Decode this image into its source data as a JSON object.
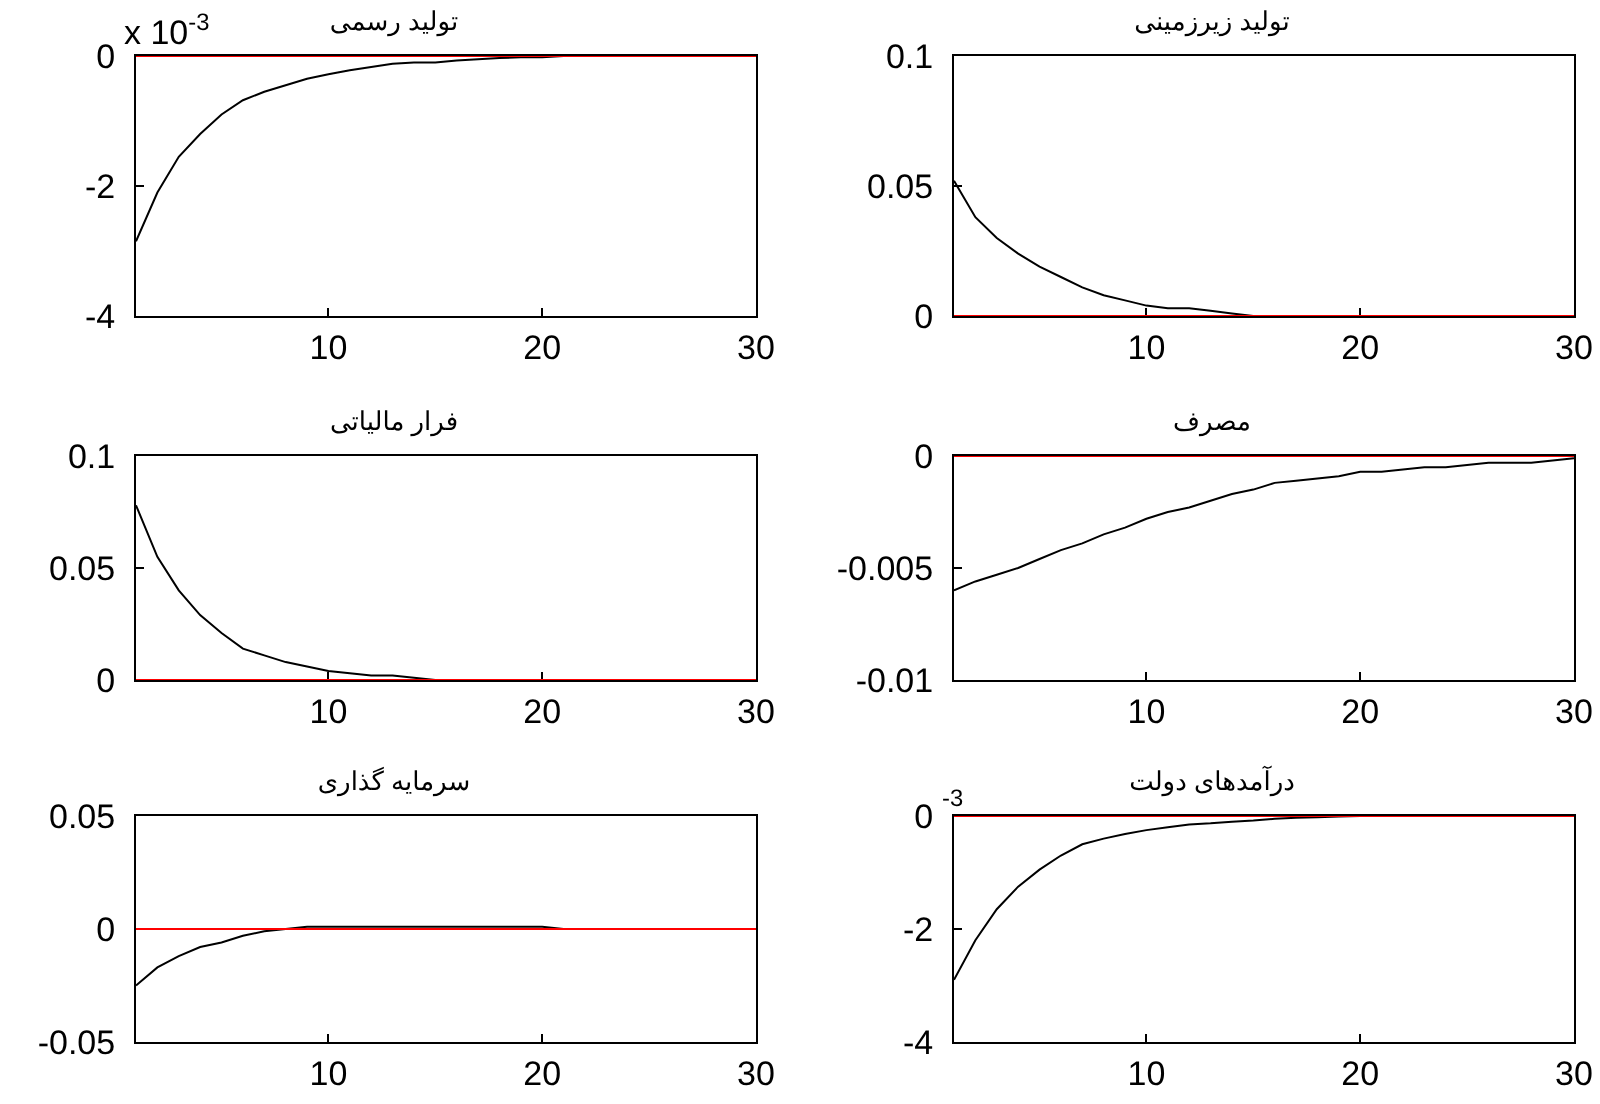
{
  "chart_data": [
    {
      "type": "line",
      "title": "تولید رسمی",
      "annotations": [
        "x 10$^{-3}$"
      ],
      "x": [
        1,
        2,
        3,
        4,
        5,
        6,
        7,
        8,
        9,
        10,
        11,
        12,
        13,
        14,
        15,
        16,
        17,
        18,
        19,
        20,
        21,
        22,
        23,
        24,
        25,
        26,
        27,
        28,
        29,
        30
      ],
      "xlim": [
        1,
        30
      ],
      "xticks": [
        10,
        20,
        30
      ],
      "ylim": [
        -4,
        0
      ],
      "yticks": [
        -4,
        -2,
        0
      ],
      "color": "#000000",
      "values": [
        -2.85,
        -2.1,
        -1.55,
        -1.2,
        -0.9,
        -0.68,
        -0.55,
        -0.45,
        -0.35,
        -0.28,
        -0.22,
        -0.17,
        -0.12,
        -0.1,
        -0.1,
        -0.07,
        -0.05,
        -0.03,
        -0.02,
        -0.02,
        0,
        0,
        0,
        0,
        0,
        0,
        0,
        0,
        0,
        0
      ],
      "ref_lines": [
        {
          "axis": "y",
          "value": 0,
          "color": "#ff0000"
        }
      ]
    },
    {
      "type": "line",
      "title": "تولید زیرزمینی",
      "x": [
        1,
        2,
        3,
        4,
        5,
        6,
        7,
        8,
        9,
        10,
        11,
        12,
        13,
        14,
        15,
        16,
        17,
        18,
        19,
        20,
        21,
        22,
        23,
        24,
        25,
        26,
        27,
        28,
        29,
        30
      ],
      "xlim": [
        1,
        30
      ],
      "xticks": [
        10,
        20,
        30
      ],
      "ylim": [
        0,
        0.1
      ],
      "yticks": [
        0,
        0.05,
        0.1
      ],
      "color": "#000000",
      "values": [
        0.052,
        0.038,
        0.03,
        0.024,
        0.019,
        0.015,
        0.011,
        0.008,
        0.006,
        0.004,
        0.003,
        0.003,
        0.002,
        0.001,
        0,
        0,
        0,
        0,
        0,
        0,
        0,
        0,
        0,
        0,
        0,
        0,
        0,
        0,
        0,
        0
      ],
      "ref_lines": [
        {
          "axis": "y",
          "value": 0,
          "color": "#ff0000"
        }
      ]
    },
    {
      "type": "line",
      "title": "فرار مالیاتی",
      "x": [
        1,
        2,
        3,
        4,
        5,
        6,
        7,
        8,
        9,
        10,
        11,
        12,
        13,
        14,
        15,
        16,
        17,
        18,
        19,
        20,
        21,
        22,
        23,
        24,
        25,
        26,
        27,
        28,
        29,
        30
      ],
      "xlim": [
        1,
        30
      ],
      "xticks": [
        10,
        20,
        30
      ],
      "ylim": [
        0,
        0.1
      ],
      "yticks": [
        0,
        0.05,
        0.1
      ],
      "color": "#000000",
      "values": [
        0.078,
        0.055,
        0.04,
        0.029,
        0.021,
        0.014,
        0.011,
        0.008,
        0.006,
        0.004,
        0.003,
        0.002,
        0.002,
        0.001,
        0,
        0,
        0,
        0,
        0,
        0,
        0,
        0,
        0,
        0,
        0,
        0,
        0,
        0,
        0,
        0
      ],
      "ref_lines": [
        {
          "axis": "y",
          "value": 0,
          "color": "#ff0000"
        }
      ]
    },
    {
      "type": "line",
      "title": "مصرف",
      "x": [
        1,
        2,
        3,
        4,
        5,
        6,
        7,
        8,
        9,
        10,
        11,
        12,
        13,
        14,
        15,
        16,
        17,
        18,
        19,
        20,
        21,
        22,
        23,
        24,
        25,
        26,
        27,
        28,
        29,
        30
      ],
      "xlim": [
        1,
        30
      ],
      "xticks": [
        10,
        20,
        30
      ],
      "ylim": [
        -0.01,
        0
      ],
      "yticks": [
        -0.01,
        -0.005,
        0
      ],
      "color": "#000000",
      "values": [
        -0.006,
        -0.0056,
        -0.0053,
        -0.005,
        -0.0046,
        -0.0042,
        -0.0039,
        -0.0035,
        -0.0032,
        -0.0028,
        -0.0025,
        -0.0023,
        -0.002,
        -0.0017,
        -0.0015,
        -0.0012,
        -0.0011,
        -0.001,
        -0.0009,
        -0.0007,
        -0.0007,
        -0.0006,
        -0.0005,
        -0.0005,
        -0.0004,
        -0.0003,
        -0.0003,
        -0.0003,
        -0.0002,
        -0.0001
      ],
      "ref_lines": [
        {
          "axis": "y",
          "value": 0,
          "color": "#ff0000"
        }
      ]
    },
    {
      "type": "line",
      "title": "سرمایه گذاری",
      "x": [
        1,
        2,
        3,
        4,
        5,
        6,
        7,
        8,
        9,
        10,
        11,
        12,
        13,
        14,
        15,
        16,
        17,
        18,
        19,
        20,
        21,
        22,
        23,
        24,
        25,
        26,
        27,
        28,
        29,
        30
      ],
      "xlim": [
        1,
        30
      ],
      "xticks": [
        10,
        20,
        30
      ],
      "ylim": [
        -0.05,
        0.05
      ],
      "yticks": [
        -0.05,
        0,
        0.05
      ],
      "color": "#000000",
      "values": [
        -0.025,
        -0.017,
        -0.012,
        -0.008,
        -0.006,
        -0.003,
        -0.001,
        0,
        0.001,
        0.001,
        0.001,
        0.001,
        0.001,
        0.001,
        0.001,
        0.001,
        0.001,
        0.001,
        0.001,
        0.001,
        0,
        0,
        0,
        0,
        0,
        0,
        0,
        0,
        0,
        0
      ],
      "ref_lines": [
        {
          "axis": "y",
          "value": 0,
          "color": "#ff0000"
        }
      ]
    },
    {
      "type": "line",
      "title": "درآمدهای دولت",
      "annotations": [
        "$^{-3}$"
      ],
      "x": [
        1,
        2,
        3,
        4,
        5,
        6,
        7,
        8,
        9,
        10,
        11,
        12,
        13,
        14,
        15,
        16,
        17,
        18,
        19,
        20,
        21,
        22,
        23,
        24,
        25,
        26,
        27,
        28,
        29,
        30
      ],
      "xlim": [
        1,
        30
      ],
      "xticks": [
        10,
        20,
        30
      ],
      "ylim": [
        -4,
        0
      ],
      "yticks": [
        -4,
        -2,
        0
      ],
      "color": "#000000",
      "values": [
        -2.9,
        -2.2,
        -1.65,
        -1.25,
        -0.95,
        -0.7,
        -0.5,
        -0.4,
        -0.32,
        -0.25,
        -0.2,
        -0.15,
        -0.13,
        -0.1,
        -0.08,
        -0.05,
        -0.03,
        -0.02,
        -0.01,
        0,
        0,
        0,
        0,
        0,
        0,
        0,
        0,
        0,
        0,
        0
      ],
      "ref_lines": [
        {
          "axis": "y",
          "value": 0,
          "color": "#ff0000"
        }
      ]
    }
  ]
}
